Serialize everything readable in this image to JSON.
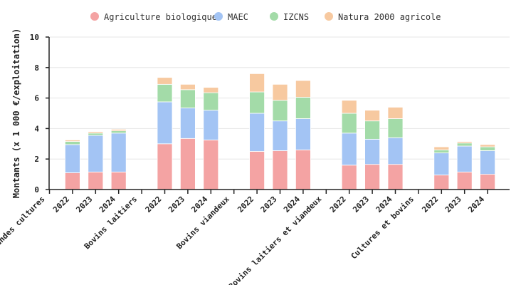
{
  "chart_data": {
    "type": "bar",
    "stacked": true,
    "title": "",
    "xlabel": "",
    "ylabel": "Montants (x 1 000 €/exploitation)",
    "ylim": [
      0,
      10
    ],
    "yticks": [
      "0",
      "2",
      "4",
      "6",
      "8",
      "10"
    ],
    "legend_position": "top",
    "groups": [
      {
        "label": "Grandes cultures",
        "years": [
          "2022",
          "2023",
          "2024"
        ]
      },
      {
        "label": "Bovins laitiers",
        "years": [
          "2022",
          "2023",
          "2024"
        ]
      },
      {
        "label": "Bovins viandeux",
        "years": [
          "2022",
          "2023",
          "2024"
        ]
      },
      {
        "label": "Bovins laitiers et viandeux",
        "years": [
          "2022",
          "2023",
          "2024"
        ]
      },
      {
        "label": "Cultures et bovins",
        "years": [
          "2022",
          "2023",
          "2024"
        ]
      }
    ],
    "series": [
      {
        "name": "Agriculture biologique",
        "color": "#f4a3a3",
        "values": [
          1.1,
          1.15,
          1.15,
          3.0,
          3.35,
          3.25,
          2.5,
          2.55,
          2.6,
          1.6,
          1.65,
          1.65,
          0.95,
          1.15,
          1.0
        ]
      },
      {
        "name": "MAEC",
        "color": "#a3c4f4",
        "values": [
          1.85,
          2.4,
          2.55,
          2.75,
          2.0,
          1.95,
          2.5,
          1.95,
          2.05,
          2.1,
          1.65,
          1.75,
          1.45,
          1.7,
          1.55
        ]
      },
      {
        "name": "IZCNS",
        "color": "#a3dba8",
        "values": [
          0.2,
          0.15,
          0.15,
          1.15,
          1.2,
          1.15,
          1.4,
          1.35,
          1.4,
          1.3,
          1.2,
          1.25,
          0.2,
          0.2,
          0.25
        ]
      },
      {
        "name": "Natura 2000 agricole",
        "color": "#f7c9a0",
        "values": [
          0.1,
          0.1,
          0.1,
          0.45,
          0.35,
          0.35,
          1.2,
          1.05,
          1.1,
          0.85,
          0.7,
          0.75,
          0.2,
          0.1,
          0.15
        ]
      }
    ]
  }
}
